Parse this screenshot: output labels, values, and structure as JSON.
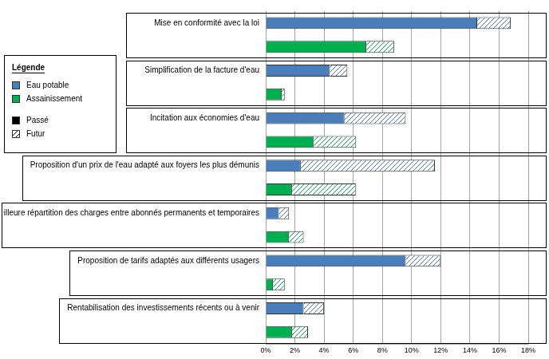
{
  "chart_data": {
    "type": "bar",
    "orientation": "horizontal",
    "stacked": true,
    "categories": [
      "Mise en conformité avec la loi",
      "Simplification de la facture d'eau",
      "Incitation aux économies d'eau",
      "Proposition d'un prix de l'eau adapté aux foyers les plus démunis",
      "Meilleure répartition des charges entre abonnés permanents et temporaires",
      "Proposition de tarifs adaptés aux différents usagers",
      "Rentabilisation des investissements récents ou à venir"
    ],
    "series": [
      {
        "name": "Eau potable",
        "color": "#4a7ebb",
        "values": [
          [
            14.5,
            2.3
          ],
          [
            4.4,
            1.2
          ],
          [
            5.4,
            4.2
          ],
          [
            2.4,
            9.2
          ],
          [
            0.9,
            0.7
          ],
          [
            9.6,
            2.4
          ],
          [
            2.6,
            1.4
          ]
        ]
      },
      {
        "name": "Assainissement",
        "color": "#00b050",
        "values": [
          [
            6.9,
            1.9
          ],
          [
            1.1,
            0.2
          ],
          [
            3.3,
            2.9
          ],
          [
            1.8,
            4.4
          ],
          [
            1.6,
            1.0
          ],
          [
            0.5,
            0.8
          ],
          [
            1.8,
            1.1
          ]
        ]
      }
    ],
    "segments": [
      {
        "name": "Passé",
        "marker": "solid",
        "color": "#000000"
      },
      {
        "name": "Futur",
        "marker": "hatched",
        "color": "#000000"
      }
    ],
    "legend_title": "Légende",
    "legend": "upper left",
    "xlim": [
      0,
      18
    ],
    "xticks": [
      {
        "value": 0,
        "label": "0%"
      },
      {
        "value": 2,
        "label": "2%"
      },
      {
        "value": 4,
        "label": "4%"
      },
      {
        "value": 6,
        "label": "6%"
      },
      {
        "value": 8,
        "label": "8%"
      },
      {
        "value": 10,
        "label": "10%"
      },
      {
        "value": 12,
        "label": "12%"
      },
      {
        "value": 14,
        "label": "14%"
      },
      {
        "value": 16,
        "label": "16%"
      },
      {
        "value": 18,
        "label": "18%"
      }
    ],
    "grid": true
  }
}
